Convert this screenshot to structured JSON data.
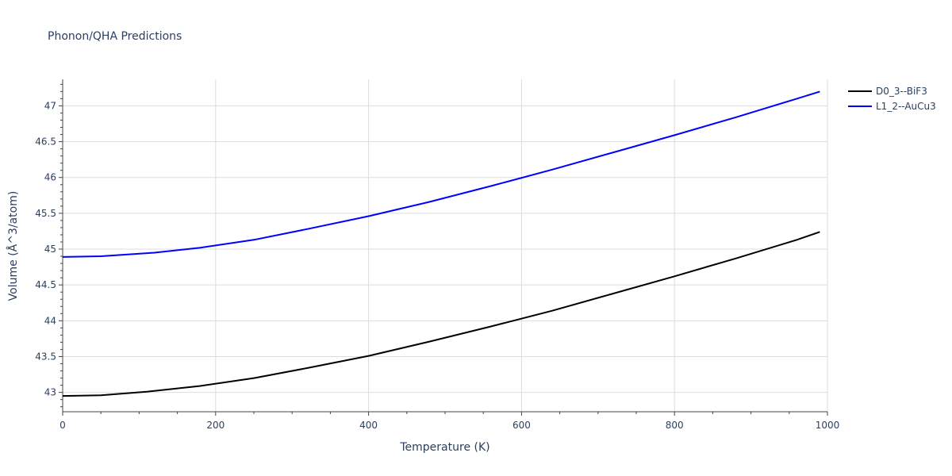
{
  "chart_data": {
    "type": "line",
    "title": "Phonon/QHA Predictions",
    "xlabel": "Temperature (K)",
    "ylabel": "Volume (Å^3/atom)",
    "xlim": [
      0,
      1000
    ],
    "ylim": [
      42.73,
      47.37
    ],
    "x_ticks": [
      0,
      200,
      400,
      600,
      800,
      1000
    ],
    "y_ticks": [
      43,
      43.5,
      44,
      44.5,
      45,
      45.5,
      46,
      46.5,
      47
    ],
    "grid": true,
    "legend_position": "top-right",
    "series": [
      {
        "name": "D0_3--BiF3",
        "color": "#000000",
        "x": [
          0,
          50,
          110,
          180,
          250,
          320,
          400,
          480,
          560,
          640,
          720,
          800,
          880,
          960,
          990
        ],
        "y": [
          42.95,
          42.96,
          43.01,
          43.09,
          43.2,
          43.34,
          43.51,
          43.71,
          43.92,
          44.14,
          44.38,
          44.62,
          44.87,
          45.13,
          45.24
        ]
      },
      {
        "name": "L1_2--AuCu3",
        "color": "#0000ff",
        "x": [
          0,
          50,
          120,
          180,
          250,
          320,
          400,
          480,
          560,
          640,
          720,
          800,
          880,
          960,
          990
        ],
        "y": [
          44.89,
          44.9,
          44.95,
          45.02,
          45.13,
          45.28,
          45.46,
          45.66,
          45.88,
          46.11,
          46.35,
          46.59,
          46.84,
          47.1,
          47.2
        ]
      }
    ]
  }
}
